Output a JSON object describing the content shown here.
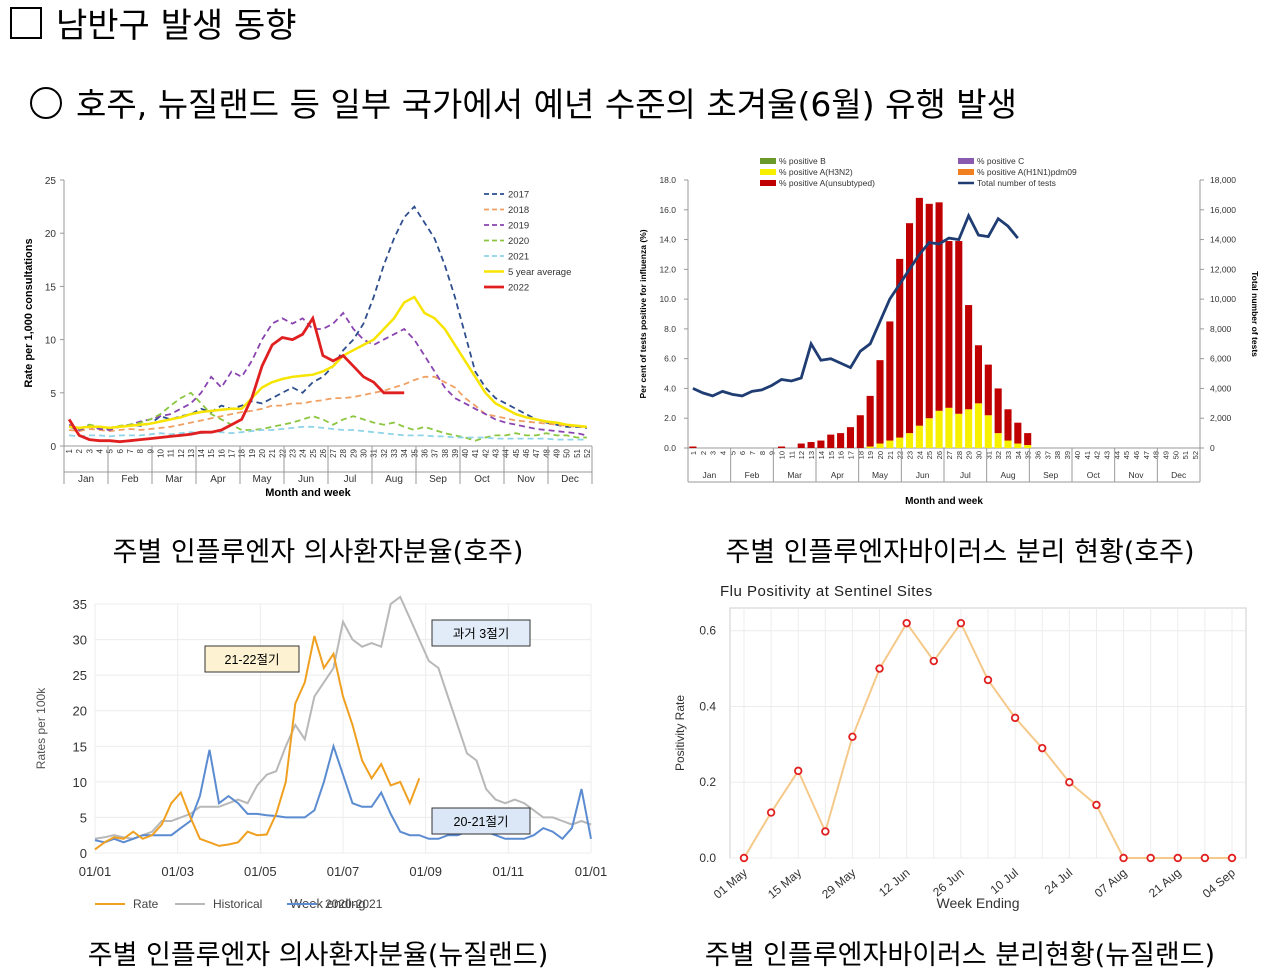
{
  "heading": "남반구 발생 동향",
  "subheading": "호주, 뉴질랜드 등 일부 국가에서 예년 수준의 초겨울(6월) 유행 발생",
  "captions": [
    "주별 인플루엔자 의사환자분율(호주)",
    "주별 인플루엔자바이러스 분리 현황(호주)",
    "주별 인플루엔자 의사환자분율(뉴질랜드)",
    "주별 인플루엔자바이러스 분리현황(뉴질랜드)"
  ],
  "chart_data": [
    {
      "type": "line",
      "title": "",
      "xlabel": "Month and week",
      "ylabel": "Rate per 1,000 consultations",
      "ylim": [
        0,
        25
      ],
      "yticks": [
        "0",
        "5",
        "10",
        "15",
        "20",
        "25"
      ],
      "months": [
        "Jan",
        "Feb",
        "Mar",
        "Apr",
        "May",
        "Jun",
        "Jul",
        "Aug",
        "Sep",
        "Oct",
        "Nov",
        "Dec"
      ],
      "weeks": [
        "1",
        "2",
        "3",
        "4",
        "5",
        "6",
        "7",
        "8",
        "9",
        "10",
        "11",
        "12",
        "13",
        "14",
        "15",
        "16",
        "17",
        "18",
        "19",
        "20",
        "21",
        "22",
        "23",
        "24",
        "25",
        "26",
        "27",
        "28",
        "29",
        "30",
        "31",
        "32",
        "33",
        "34",
        "35",
        "36",
        "37",
        "38",
        "39",
        "40",
        "41",
        "42",
        "43",
        "44",
        "45",
        "46",
        "47",
        "48",
        "49",
        "50",
        "51",
        "52"
      ],
      "series": [
        {
          "name": "2017",
          "color": "#2e4e8e",
          "dash": "6,4",
          "width": 1.8,
          "values": [
            1.8,
            1.5,
            2.0,
            1.6,
            1.6,
            1.8,
            2.0,
            1.9,
            2.1,
            2.8,
            2.5,
            2.8,
            3.0,
            3.5,
            3.2,
            3.8,
            3.5,
            3.8,
            4.2,
            4.0,
            4.5,
            5.0,
            5.5,
            5.0,
            6.0,
            6.5,
            7.5,
            9.0,
            10.0,
            11.5,
            14.0,
            17.0,
            19.5,
            21.5,
            22.5,
            21.0,
            19.5,
            17.0,
            14.0,
            10.5,
            7.0,
            5.5,
            4.5,
            4.0,
            3.5,
            3.0,
            2.5,
            2.2,
            2.0,
            1.8,
            1.8,
            1.7
          ]
        },
        {
          "name": "2018",
          "color": "#f0a062",
          "dash": "6,4",
          "width": 1.8,
          "values": [
            1.5,
            1.4,
            1.6,
            1.5,
            1.4,
            1.5,
            1.6,
            1.5,
            1.6,
            1.7,
            1.8,
            2.0,
            2.2,
            2.4,
            2.6,
            2.8,
            3.0,
            3.2,
            3.3,
            3.5,
            3.8,
            3.8,
            4.0,
            4.0,
            4.2,
            4.3,
            4.5,
            4.5,
            4.6,
            4.8,
            5.0,
            5.2,
            5.5,
            5.8,
            6.2,
            6.5,
            6.5,
            6.0,
            5.5,
            4.5,
            3.8,
            3.0,
            2.8,
            2.6,
            2.4,
            2.3,
            2.2,
            2.1,
            2.0,
            1.9,
            1.8,
            1.8
          ]
        },
        {
          "name": "2019",
          "color": "#8a44b0",
          "dash": "6,4",
          "width": 1.8,
          "values": [
            2.0,
            1.5,
            1.8,
            1.6,
            1.5,
            1.8,
            2.0,
            2.3,
            2.5,
            2.8,
            3.0,
            3.5,
            4.0,
            5.0,
            6.5,
            5.5,
            7.0,
            6.5,
            8.0,
            10.0,
            11.5,
            12.0,
            11.5,
            12.0,
            11.0,
            11.0,
            11.5,
            12.5,
            11.0,
            10.0,
            9.5,
            10.0,
            10.5,
            11.0,
            10.0,
            8.5,
            7.0,
            5.5,
            4.5,
            4.0,
            3.5,
            3.0,
            2.5,
            2.2,
            2.0,
            1.8,
            1.6,
            1.5,
            1.4,
            1.3,
            1.2,
            1.0
          ]
        },
        {
          "name": "2020",
          "color": "#8cc63f",
          "dash": "6,4",
          "width": 1.8,
          "values": [
            1.8,
            1.6,
            2.0,
            1.8,
            1.7,
            1.9,
            2.0,
            2.2,
            2.5,
            3.0,
            3.8,
            4.5,
            5.0,
            4.0,
            3.0,
            2.5,
            2.0,
            1.5,
            1.5,
            1.6,
            1.8,
            2.0,
            2.2,
            2.5,
            2.8,
            2.5,
            2.0,
            2.5,
            2.8,
            2.5,
            2.2,
            2.0,
            2.2,
            1.8,
            1.5,
            1.8,
            1.5,
            1.2,
            1.0,
            0.8,
            0.5,
            0.8,
            1.0,
            1.0,
            1.2,
            1.0,
            1.0,
            1.2,
            1.0,
            1.0,
            0.8,
            0.8
          ]
        },
        {
          "name": "2021",
          "color": "#8fd4e8",
          "dash": "6,4",
          "width": 1.8,
          "values": [
            1.0,
            0.9,
            1.0,
            1.0,
            0.9,
            1.0,
            1.0,
            1.0,
            1.1,
            1.2,
            1.1,
            1.2,
            1.3,
            1.2,
            1.3,
            1.3,
            1.2,
            1.3,
            1.4,
            1.5,
            1.5,
            1.6,
            1.7,
            1.8,
            1.8,
            1.7,
            1.6,
            1.5,
            1.5,
            1.4,
            1.3,
            1.2,
            1.1,
            1.0,
            1.0,
            1.0,
            0.9,
            0.9,
            0.8,
            0.8,
            0.8,
            0.8,
            0.7,
            0.7,
            0.7,
            0.7,
            0.7,
            0.7,
            0.6,
            0.6,
            0.6,
            0.6
          ]
        },
        {
          "name": "5 year average",
          "color": "#f7e400",
          "dash": "",
          "width": 2.5,
          "values": [
            1.8,
            1.7,
            1.8,
            1.8,
            1.7,
            1.8,
            1.9,
            2.0,
            2.1,
            2.3,
            2.5,
            2.7,
            3.0,
            3.2,
            3.3,
            3.4,
            3.5,
            3.5,
            4.5,
            5.5,
            6.0,
            6.3,
            6.5,
            6.6,
            6.7,
            7.0,
            7.5,
            8.5,
            9.0,
            9.5,
            10.0,
            11.0,
            12.0,
            13.5,
            14.0,
            12.5,
            12.0,
            11.0,
            9.5,
            8.0,
            6.5,
            5.0,
            4.0,
            3.5,
            3.0,
            2.7,
            2.5,
            2.3,
            2.2,
            2.0,
            1.9,
            1.8
          ]
        },
        {
          "name": "2022",
          "color": "#e02020",
          "dash": "",
          "width": 2.8,
          "values": [
            2.5,
            1.0,
            0.6,
            0.5,
            0.5,
            0.4,
            0.5,
            0.6,
            0.7,
            0.8,
            0.9,
            1.0,
            1.1,
            1.3,
            1.3,
            1.5,
            2.0,
            2.5,
            4.5,
            7.5,
            9.5,
            10.2,
            10.0,
            10.5,
            12.0,
            8.5,
            8.0,
            8.5,
            7.5,
            6.5,
            6.0,
            5.0,
            5.0,
            5.0,
            null,
            null,
            null,
            null,
            null,
            null,
            null,
            null,
            null,
            null,
            null,
            null,
            null,
            null,
            null,
            null,
            null,
            null
          ]
        }
      ]
    },
    {
      "type": "bar",
      "title": "",
      "xlabel": "Month and week",
      "ylabel": "Per cent of tests positive for influenza (%)",
      "y2label": "Total number of tests",
      "ylim": [
        0,
        18
      ],
      "y2lim": [
        0,
        18000
      ],
      "yticks": [
        "0.0",
        "2.0",
        "4.0",
        "6.0",
        "8.0",
        "10.0",
        "12.0",
        "14.0",
        "16.0",
        "18.0"
      ],
      "y2ticks": [
        "0",
        "2,000",
        "4,000",
        "6,000",
        "8,000",
        "10,000",
        "12,000",
        "14,000",
        "16,000",
        "18,000"
      ],
      "months": [
        "Jan",
        "Feb",
        "Mar",
        "Apr",
        "May",
        "Jun",
        "Jul",
        "Aug",
        "Sep",
        "Oct",
        "Nov",
        "Dec"
      ],
      "weeks": [
        "1",
        "2",
        "3",
        "4",
        "5",
        "6",
        "7",
        "8",
        "9",
        "10",
        "11",
        "12",
        "13",
        "14",
        "15",
        "16",
        "17",
        "18",
        "19",
        "20",
        "21",
        "22",
        "23",
        "24",
        "25",
        "26",
        "27",
        "28",
        "29",
        "30",
        "31",
        "32",
        "33",
        "34",
        "35",
        "36",
        "37",
        "38",
        "39",
        "40",
        "41",
        "42",
        "43",
        "44",
        "45",
        "46",
        "47",
        "48",
        "49",
        "50",
        "51",
        "52"
      ],
      "legend": [
        "% positive B",
        "% positive A(H3N2)",
        "% positive A(unsubtyped)",
        "% positive C",
        "% positive A(H1N1)pdm09",
        "Total number of tests"
      ],
      "legend_colors": [
        "#6a9a2a",
        "#f7f000",
        "#c00000",
        "#8a5ab0",
        "#f08020",
        "#1f3d73"
      ],
      "series": [
        {
          "name": "% positive A(H3N2)",
          "color": "#f7f000",
          "values": [
            0,
            0,
            0,
            0,
            0,
            0,
            0,
            0,
            0,
            0,
            0,
            0,
            0,
            0,
            0,
            0,
            0,
            0,
            0.1,
            0.3,
            0.5,
            0.7,
            1.0,
            1.5,
            2.0,
            2.5,
            2.7,
            2.3,
            2.6,
            3.0,
            2.2,
            1.0,
            0.5,
            0.3,
            0.2,
            0,
            0,
            0,
            0,
            0,
            0,
            0,
            0,
            0,
            0,
            0,
            0,
            0,
            0,
            0,
            0,
            0
          ]
        },
        {
          "name": "% positive A(unsubtyped)",
          "color": "#c00000",
          "values": [
            0.1,
            0,
            0,
            0,
            0,
            0,
            0,
            0,
            0,
            0.1,
            0,
            0.3,
            0.4,
            0.5,
            0.9,
            1.0,
            1.4,
            2.2,
            3.4,
            5.6,
            8.0,
            12.0,
            14.1,
            15.3,
            14.4,
            14.0,
            11.2,
            11.6,
            7.0,
            3.9,
            3.4,
            3.0,
            2.1,
            1.4,
            0.8,
            0,
            0,
            0,
            0,
            0,
            0,
            0,
            0,
            0,
            0,
            0,
            0,
            0,
            0,
            0,
            0,
            0
          ]
        },
        {
          "name": "Total number of tests",
          "color": "#1f3d73",
          "values": [
            4000,
            3700,
            3500,
            3800,
            3600,
            3500,
            3800,
            3900,
            4200,
            4600,
            4500,
            4700,
            7000,
            5900,
            6000,
            5700,
            5400,
            6500,
            7000,
            8500,
            10000,
            11000,
            12000,
            13000,
            13800,
            13700,
            14100,
            14000,
            15600,
            14300,
            14200,
            15400,
            14900,
            14100,
            null,
            null,
            null,
            null,
            null,
            null,
            null,
            null,
            null,
            null,
            null,
            null,
            null,
            null,
            null,
            null,
            null,
            null
          ]
        }
      ]
    },
    {
      "type": "line",
      "title": "",
      "xlabel": "Week ending",
      "ylabel": "Rates per 100k",
      "ylim": [
        0,
        35
      ],
      "yticks": [
        "0",
        "5",
        "10",
        "15",
        "20",
        "25",
        "30",
        "35"
      ],
      "xticks": [
        "01/01",
        "01/03",
        "01/05",
        "01/07",
        "01/09",
        "01/11",
        "01/01"
      ],
      "annotations": [
        "21-22절기",
        "과거 3절기",
        "20-21절기"
      ],
      "legend": [
        "Rate",
        "Historical",
        "2020-2021"
      ],
      "series": [
        {
          "name": "Rate",
          "color": "#f0a020",
          "values": [
            0.5,
            1.5,
            2.2,
            2.0,
            3.0,
            2.0,
            2.5,
            4.0,
            7.0,
            8.5,
            5.0,
            2.0,
            1.5,
            1.0,
            1.2,
            1.5,
            3.0,
            2.5,
            2.6,
            5.5,
            10.0,
            21.0,
            24.0,
            30.5,
            26.0,
            28.0,
            22.0,
            18.0,
            13.0,
            10.5,
            12.5,
            9.5,
            10.0,
            7.0,
            10.5
          ]
        },
        {
          "name": "Historical",
          "color": "#b8b8b8",
          "values": [
            2.0,
            2.2,
            2.5,
            2.2,
            2.0,
            2.5,
            3.0,
            4.5,
            4.5,
            5.0,
            5.5,
            6.5,
            6.5,
            6.5,
            7.0,
            7.5,
            7.0,
            9.5,
            11.0,
            11.5,
            15.0,
            18.0,
            16.0,
            22.0,
            24.0,
            26.0,
            32.5,
            30.0,
            29.0,
            29.5,
            29.0,
            35.0,
            36.0,
            33.0,
            30.0,
            27.0,
            26.0,
            22.0,
            18.0,
            14.0,
            13.0,
            9.0,
            7.5,
            7.0,
            7.5,
            7.0,
            6.0,
            5.0,
            5.0,
            4.5,
            4.0,
            4.5,
            4.0
          ]
        },
        {
          "name": "2020-2021",
          "color": "#5b8bd0",
          "values": [
            1.8,
            1.5,
            2.0,
            1.5,
            2.0,
            2.5,
            2.5,
            2.5,
            2.5,
            3.5,
            4.5,
            8.0,
            14.5,
            7.0,
            8.0,
            7.0,
            5.5,
            5.5,
            5.3,
            5.2,
            5.0,
            5.0,
            5.0,
            6.0,
            10.0,
            15.0,
            11.0,
            7.0,
            6.5,
            6.5,
            8.5,
            5.5,
            3.0,
            2.5,
            2.5,
            2.0,
            2.0,
            2.5,
            2.5,
            3.0,
            3.5,
            3.0,
            2.5,
            2.0,
            2.0,
            2.0,
            2.5,
            3.5,
            3.0,
            2.0,
            3.5,
            9.0,
            2.0
          ]
        }
      ]
    },
    {
      "type": "line",
      "title": "Flu Positivity at Sentinel Sites",
      "xlabel": "Week Ending",
      "ylabel": "Positivity Rate",
      "ylim": [
        0,
        0.66
      ],
      "yticks": [
        "0.0",
        "0.2",
        "0.4",
        "0.6"
      ],
      "xticks": [
        "01 May",
        "15 May",
        "29 May",
        "12 Jun",
        "26 Jun",
        "10 Jul",
        "24 Jul",
        "07 Aug",
        "21 Aug",
        "04 Sep"
      ],
      "series": [
        {
          "name": "Positivity",
          "color": "#f5c98a",
          "values": [
            0.0,
            0.12,
            0.23,
            0.07,
            0.32,
            0.5,
            0.62,
            0.52,
            0.62,
            0.47,
            0.37,
            0.29,
            0.2,
            0.14,
            0.0,
            0.0,
            0.0,
            0.0,
            0.0
          ]
        }
      ]
    }
  ]
}
